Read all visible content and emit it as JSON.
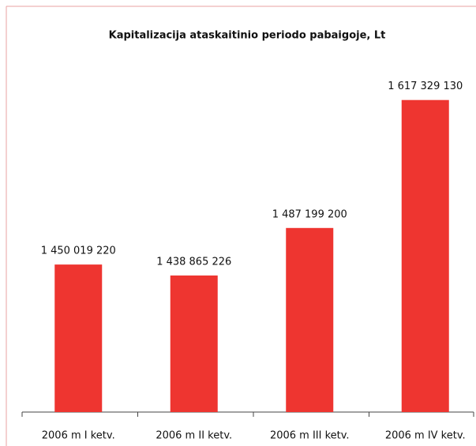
{
  "chart_data": {
    "type": "bar",
    "title": "Kapitalizacija ataskaitinio periodo pabaigoje, Lt",
    "categories": [
      "2006 m I ketv.",
      "2006 m II ketv.",
      "2006 m III ketv.",
      "2006 m IV ketv."
    ],
    "values": [
      1450019220,
      1438865226,
      1487199200,
      1617329130
    ],
    "value_labels": [
      "1 450 019 220",
      "1 438 865 226",
      "1 487 199 200",
      "1 617 329 130"
    ],
    "color": "#ee3530",
    "ylim": [
      1300000000,
      1650000000
    ]
  }
}
